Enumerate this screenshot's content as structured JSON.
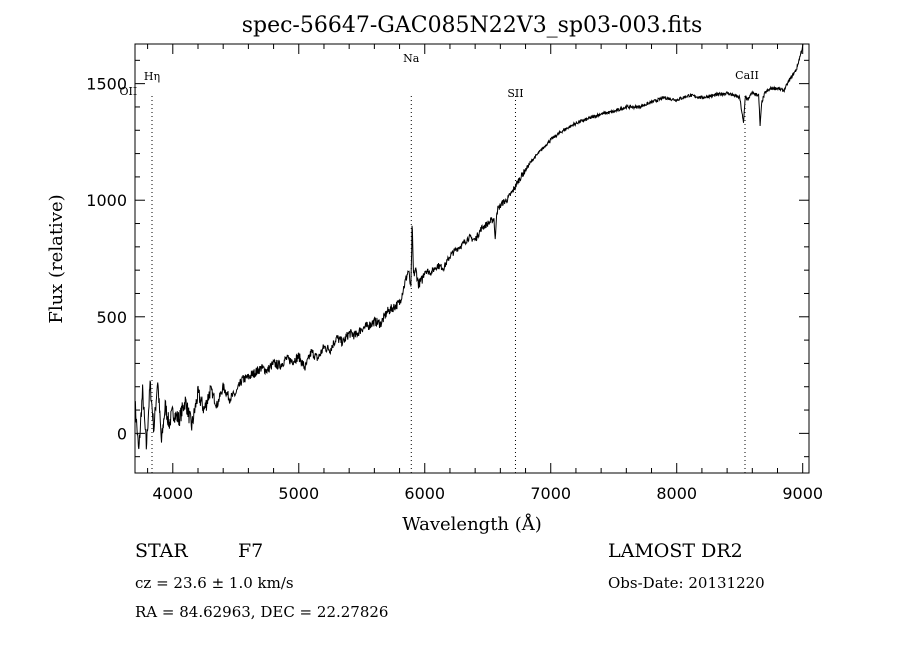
{
  "chart_data": {
    "type": "line",
    "title": "spec-56647-GAC085N22V3_sp03-003.fits",
    "xlabel": "Wavelength (Å)",
    "ylabel": "Flux (relative)",
    "xlim": [
      3700,
      9050
    ],
    "ylim": [
      -170,
      1670
    ],
    "x_ticks": [
      4000,
      5000,
      6000,
      7000,
      8000,
      9000
    ],
    "x_tick_labels": [
      "4000",
      "5000",
      "6000",
      "7000",
      "8000",
      "9000"
    ],
    "y_ticks": [
      0,
      500,
      1000,
      1500
    ],
    "y_tick_labels": [
      "0",
      "500",
      "1000",
      "1500"
    ],
    "grid": false,
    "line_color": "#000000",
    "spectral_lines": [
      {
        "label": "Hη",
        "wavelength": 3835
      },
      {
        "label": "OII",
        "wavelength": 3727
      },
      {
        "label": "Na",
        "wavelength": 5893
      },
      {
        "label": "SII",
        "wavelength": 6720
      },
      {
        "label": "CaII",
        "wavelength": 8542
      }
    ],
    "series": [
      {
        "x": [
          3700,
          3730,
          3760,
          3790,
          3820,
          3850,
          3880,
          3910,
          3940,
          3970,
          4000,
          4050,
          4100,
          4150,
          4200,
          4250,
          4300,
          4350,
          4400,
          4450,
          4500,
          4550,
          4600,
          4650,
          4700,
          4750,
          4800,
          4850,
          4900,
          4950,
          5000,
          5050,
          5100,
          5150,
          5200,
          5250,
          5300,
          5350,
          5400,
          5450,
          5500,
          5550,
          5600,
          5650,
          5700,
          5750,
          5800,
          5850,
          5870,
          5890,
          5900,
          5910,
          5930,
          5950,
          5980,
          6000,
          6050,
          6100,
          6150,
          6200,
          6250,
          6300,
          6350,
          6400,
          6450,
          6500,
          6550,
          6560,
          6570,
          6590,
          6620,
          6650,
          6700,
          6750,
          6800,
          6850,
          6900,
          6950,
          7000,
          7100,
          7200,
          7300,
          7400,
          7500,
          7600,
          7700,
          7800,
          7900,
          8000,
          8100,
          8200,
          8300,
          8400,
          8450,
          8500,
          8530,
          8545,
          8560,
          8600,
          8650,
          8662,
          8675,
          8700,
          8750,
          8800,
          8850,
          8900,
          8950,
          8990,
          9010
        ],
        "y": [
          130,
          -80,
          180,
          -60,
          210,
          20,
          230,
          -40,
          120,
          40,
          90,
          60,
          140,
          30,
          170,
          100,
          190,
          120,
          200,
          150,
          170,
          230,
          240,
          260,
          280,
          270,
          300,
          290,
          320,
          310,
          330,
          280,
          350,
          320,
          370,
          360,
          410,
          390,
          430,
          420,
          450,
          460,
          480,
          470,
          520,
          540,
          560,
          660,
          700,
          620,
          900,
          680,
          700,
          640,
          660,
          700,
          690,
          720,
          710,
          760,
          790,
          810,
          840,
          830,
          880,
          900,
          920,
          820,
          950,
          970,
          990,
          1000,
          1040,
          1090,
          1130,
          1170,
          1200,
          1230,
          1260,
          1300,
          1330,
          1350,
          1370,
          1380,
          1400,
          1400,
          1420,
          1440,
          1430,
          1450,
          1440,
          1450,
          1460,
          1450,
          1440,
          1330,
          1450,
          1430,
          1460,
          1450,
          1320,
          1420,
          1460,
          1480,
          1480,
          1470,
          1520,
          1560,
          1640,
          1680
        ]
      }
    ]
  },
  "info": {
    "object_class": "STAR",
    "subclass": "F7",
    "redshift_text": "cz = 23.6 ± 1.0 km/s",
    "coords_text": "RA =  84.62963, DEC =  22.27826",
    "survey": "LAMOST DR2",
    "obs_date_text": "Obs-Date: 20131220"
  }
}
